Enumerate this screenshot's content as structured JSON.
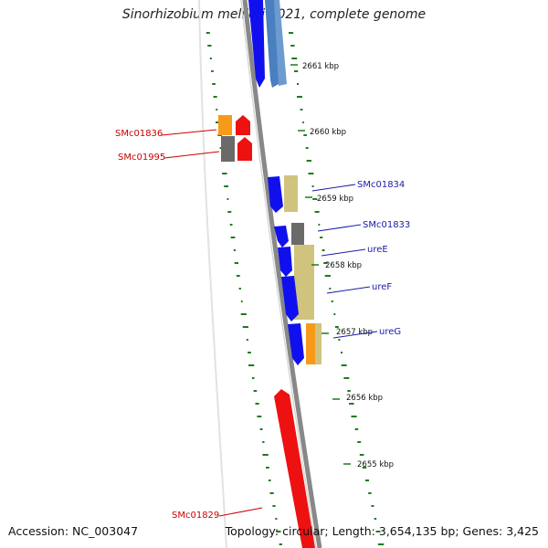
{
  "title": "Sinorhizobium meliloti 1021, complete genome",
  "footer": {
    "accession": "Accession: NC_003047",
    "summary": "Topology: circular; Length: 3,654,135 bp; Genes: 3,425"
  },
  "colors": {
    "backbone": "#8a8a8a",
    "gc_ticks": "#1f7a1f",
    "blue": "#1010ee",
    "steelblue": "#4a7fc0",
    "red": "#ee1111",
    "orange": "#f79a1a",
    "gray": "#6a6a6a",
    "khaki": "#cfc37e",
    "label_red": "#cc0000",
    "label_blue": "#1a1aaa"
  },
  "kbp_ticks": [
    "2661 kbp",
    "2660 kbp",
    "2659 kbp",
    "2658 kbp",
    "2657 kbp",
    "2656 kbp",
    "2655 kbp"
  ],
  "gene_labels": {
    "left": [
      "SMc01836",
      "SMc01995",
      "SMc01829"
    ],
    "right": [
      "SMc01834",
      "SMc01833",
      "ureE",
      "ureF",
      "ureG"
    ]
  }
}
